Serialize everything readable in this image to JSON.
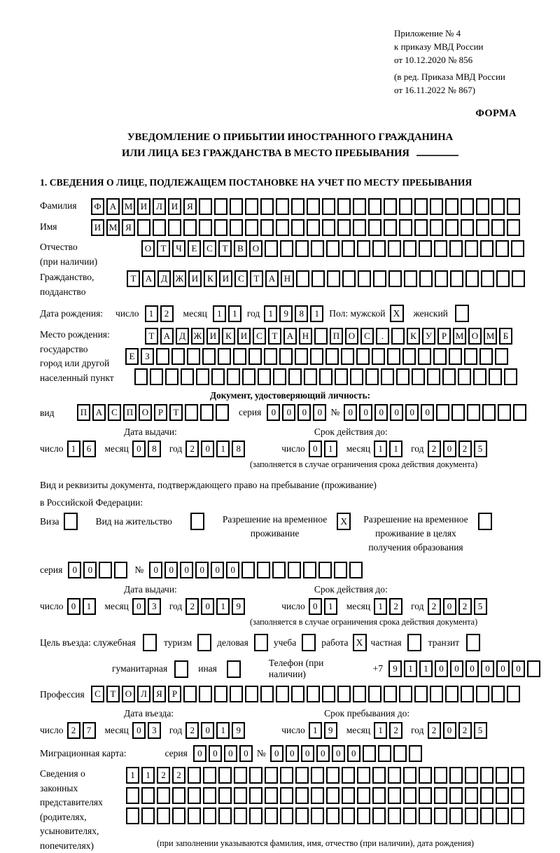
{
  "t": {
    "h1": "Приложение № 4",
    "h2": "к приказу МВД России",
    "h3": "от 10.12.2020 № 856",
    "h4": "(в ред. Приказа МВД России",
    "h5": "от 16.11.2022 № 867)",
    "forma": "ФОРМА",
    "title1": "УВЕДОМЛЕНИЕ О ПРИБЫТИИ ИНОСТРАННОГО ГРАЖДАНИНА",
    "title2": "ИЛИ ЛИЦА БЕЗ ГРАЖДАНСТВА В МЕСТО ПРЕБЫВАНИЯ",
    "sec1": "1. СВЕДЕНИЯ О ЛИЦЕ, ПОДЛЕЖАЩЕМ ПОСТАНОВКЕ НА УЧЕТ ПО МЕСТУ ПРЕБЫВАНИЯ",
    "surname": "Фамилия",
    "name": "Имя",
    "patronymic": "Отчество",
    "patronymic2": "(при наличии)",
    "citizenship": "Гражданство,",
    "citizenship2": "подданство",
    "birthdate": "Дата рождения:",
    "chislo": "число",
    "mesyac": "месяц",
    "god": "год",
    "pol": "Пол: мужской",
    "female": "женский",
    "birthplace1": "Место рождения:",
    "birthplace2": "государство",
    "birthplace3": "город или другой",
    "birthplace4": "населенный пункт",
    "docheader": "Документ, удостоверяющий личность:",
    "vid": "вид",
    "seria": "серия",
    "num": "№",
    "issued": "Дата выдачи:",
    "valid": "Срок действия до:",
    "restricted": "(заполняется в случае ограничения срока действия документа)",
    "rights1": "Вид и реквизиты документа, подтверждающего право на пребывание (проживание)",
    "rights2": "в Российской Федерации:",
    "visa": "Виза",
    "residence": "Вид на жительство",
    "rvp1": "Разрешение на временное",
    "rvp2": "проживание",
    "rvpedu1": "Разрешение на временное",
    "rvpedu2": "проживание в целях",
    "rvpedu3": "получения образования",
    "purpose": "Цель въезда: служебная",
    "tourism": "туризм",
    "business": "деловая",
    "study": "учеба",
    "work": "работа",
    "private": "частная",
    "transit": "транзит",
    "humanitarian": "гуманитарная",
    "other": "иная",
    "phone": "Телефон (при наличии)",
    "plus7": "+7",
    "profession": "Профессия",
    "entry": "Дата въезда:",
    "stay": "Срок пребывания до:",
    "migcard": "Миграционная карта:",
    "reps1": "Сведения о",
    "reps2": "законных",
    "reps3": "представителях",
    "reps4": "(родителях,",
    "reps5": "усыновителях,",
    "reps6": "попечителях)",
    "footnote": "(при заполнении указываются фамилия, имя, отчество (при наличии), дата рождения)"
  },
  "f": {
    "surname": {
      "n": 28,
      "v": "ФАМИЛИЯ"
    },
    "name": {
      "n": 28,
      "v": "ИМЯ"
    },
    "patronymic": {
      "n": 25,
      "v": "ОТЧЕСТВО"
    },
    "citizenship": {
      "n": 26,
      "v": "ТАДЖИКИСТАН"
    },
    "birth_d": {
      "n": 2,
      "v": "12"
    },
    "birth_m": {
      "n": 2,
      "v": "11"
    },
    "birth_y": {
      "n": 4,
      "v": "1981"
    },
    "male": "X",
    "female": "",
    "birthplace1": {
      "n": 24,
      "v": "ТАДЖИКИСТАН ПОС. КУРМОМБ"
    },
    "birthplace2": {
      "n": 25,
      "v": "ЕЗ"
    },
    "birthplace3": {
      "n": 25,
      "v": ""
    },
    "doc_vid": {
      "n": 10,
      "v": "ПАСПОРТ"
    },
    "doc_seria": {
      "n": 4,
      "v": "0000"
    },
    "doc_num": {
      "n": 12,
      "v": "000000"
    },
    "doc_issue_d": {
      "n": 2,
      "v": "16"
    },
    "doc_issue_m": {
      "n": 2,
      "v": "08"
    },
    "doc_issue_y": {
      "n": 4,
      "v": "2018"
    },
    "doc_valid_d": {
      "n": 2,
      "v": "01"
    },
    "doc_valid_m": {
      "n": 2,
      "v": "11"
    },
    "doc_valid_y": {
      "n": 4,
      "v": "2025"
    },
    "visa": "",
    "residence": "",
    "rvp": "X",
    "rvpedu": "",
    "rvp_seria": {
      "n": 4,
      "v": "00"
    },
    "rvp_num": {
      "n": 14,
      "v": "000000"
    },
    "rvp_issue_d": {
      "n": 2,
      "v": "01"
    },
    "rvp_issue_m": {
      "n": 2,
      "v": "03"
    },
    "rvp_issue_y": {
      "n": 4,
      "v": "2019"
    },
    "rvp_valid_d": {
      "n": 2,
      "v": "01"
    },
    "rvp_valid_m": {
      "n": 2,
      "v": "12"
    },
    "rvp_valid_y": {
      "n": 4,
      "v": "2025"
    },
    "p_official": "",
    "p_tourism": "",
    "p_business": "",
    "p_study": "",
    "p_work": "X",
    "p_private": "",
    "p_transit": "",
    "p_humanitarian": "",
    "p_other": "",
    "phone": {
      "n": 10,
      "v": "911000000"
    },
    "profession": {
      "n": 28,
      "v": "СТОЛЯР"
    },
    "entry_d": {
      "n": 2,
      "v": "27"
    },
    "entry_m": {
      "n": 2,
      "v": "03"
    },
    "entry_y": {
      "n": 4,
      "v": "2019"
    },
    "stay_d": {
      "n": 2,
      "v": "19"
    },
    "stay_m": {
      "n": 2,
      "v": "12"
    },
    "stay_y": {
      "n": 4,
      "v": "2025"
    },
    "mig_seria": {
      "n": 4,
      "v": "0000"
    },
    "mig_num": {
      "n": 10,
      "v": "000000"
    },
    "reps1": {
      "n": 26,
      "v": "1122"
    },
    "reps2": {
      "n": 26,
      "v": ""
    },
    "reps3": {
      "n": 26,
      "v": ""
    }
  }
}
